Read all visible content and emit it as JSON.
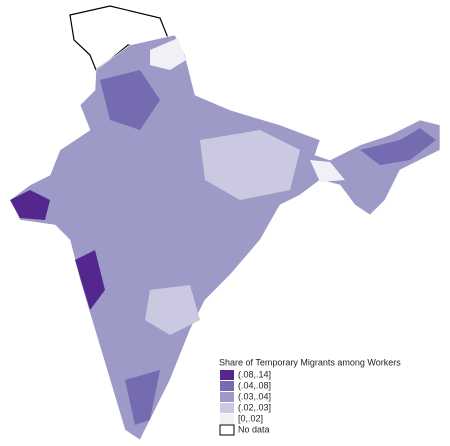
{
  "legend": {
    "title": "Share of Temporary Migrants among Workers",
    "items": [
      {
        "label": "(.08,.14]",
        "color": "#54278f"
      },
      {
        "label": "(.04,.08]",
        "color": "#756bb1"
      },
      {
        "label": "(.03,.04]",
        "color": "#9e9ac8"
      },
      {
        "label": "(.02,.03]",
        "color": "#cbc9e2"
      },
      {
        "label": "[0,.02]",
        "color": "#f2f0f7"
      },
      {
        "label": "No data",
        "color": "#ffffff"
      }
    ]
  }
}
